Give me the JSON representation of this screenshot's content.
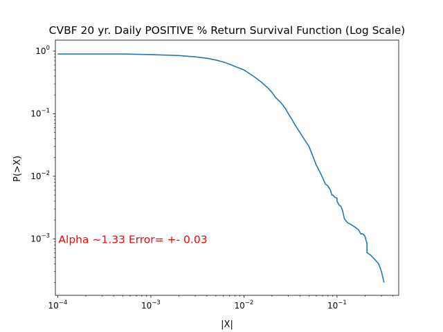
{
  "chart_data": {
    "type": "line",
    "title": "CVBF 20 yr. Daily POSITIVE % Return Survival Function (Log Scale)",
    "xlabel": "|X|",
    "ylabel": "P(>X)",
    "xscale": "log",
    "yscale": "log",
    "xlim": [
      9.43e-05,
      0.46
    ],
    "ylim": [
      0.000125,
      1.5
    ],
    "grid": false,
    "x_ticks": [
      {
        "value": 0.0001,
        "base": "10",
        "exp": "−4"
      },
      {
        "value": 0.001,
        "base": "10",
        "exp": "−3"
      },
      {
        "value": 0.01,
        "base": "10",
        "exp": "−2"
      },
      {
        "value": 0.1,
        "base": "10",
        "exp": "−1"
      }
    ],
    "y_ticks": [
      {
        "value": 0.001,
        "base": "10",
        "exp": "−3"
      },
      {
        "value": 0.01,
        "base": "10",
        "exp": "−2"
      },
      {
        "value": 0.1,
        "base": "10",
        "exp": "−1"
      },
      {
        "value": 1,
        "base": "10",
        "exp": "0"
      }
    ],
    "annotation": {
      "text": "Alpha ~1.33  Error= +- 0.03",
      "x": 0.0001,
      "y": 0.001,
      "color": "#ff0000"
    },
    "series": [
      {
        "color": "#1f77b4",
        "x": [
          0.0001,
          0.0002,
          0.0005,
          0.001,
          0.002,
          0.003,
          0.004,
          0.005,
          0.006,
          0.007,
          0.008,
          0.01,
          0.012,
          0.015,
          0.018,
          0.02,
          0.022,
          0.025,
          0.028,
          0.03,
          0.033,
          0.035,
          0.04,
          0.045,
          0.05,
          0.055,
          0.06,
          0.065,
          0.07,
          0.075,
          0.08,
          0.085,
          0.088,
          0.09,
          0.095,
          0.1,
          0.1,
          0.105,
          0.11,
          0.115,
          0.12,
          0.13,
          0.14,
          0.15,
          0.16,
          0.17,
          0.18,
          0.19,
          0.2,
          0.205,
          0.21,
          0.21,
          0.23,
          0.25,
          0.28,
          0.3,
          0.32
        ],
        "y": [
          0.9,
          0.9,
          0.9,
          0.88,
          0.85,
          0.81,
          0.77,
          0.72,
          0.67,
          0.62,
          0.57,
          0.5,
          0.42,
          0.33,
          0.26,
          0.22,
          0.18,
          0.15,
          0.12,
          0.1,
          0.08,
          0.068,
          0.05,
          0.038,
          0.03,
          0.021,
          0.015,
          0.012,
          0.0095,
          0.0075,
          0.007,
          0.006,
          0.005,
          0.005,
          0.0046,
          0.0045,
          0.004,
          0.0035,
          0.0033,
          0.0028,
          0.0021,
          0.0018,
          0.0017,
          0.0016,
          0.0015,
          0.0014,
          0.0012,
          0.0012,
          0.0011,
          0.00095,
          0.00085,
          0.0006,
          0.00055,
          0.00048,
          0.0004,
          0.0003,
          0.0002
        ]
      }
    ]
  }
}
